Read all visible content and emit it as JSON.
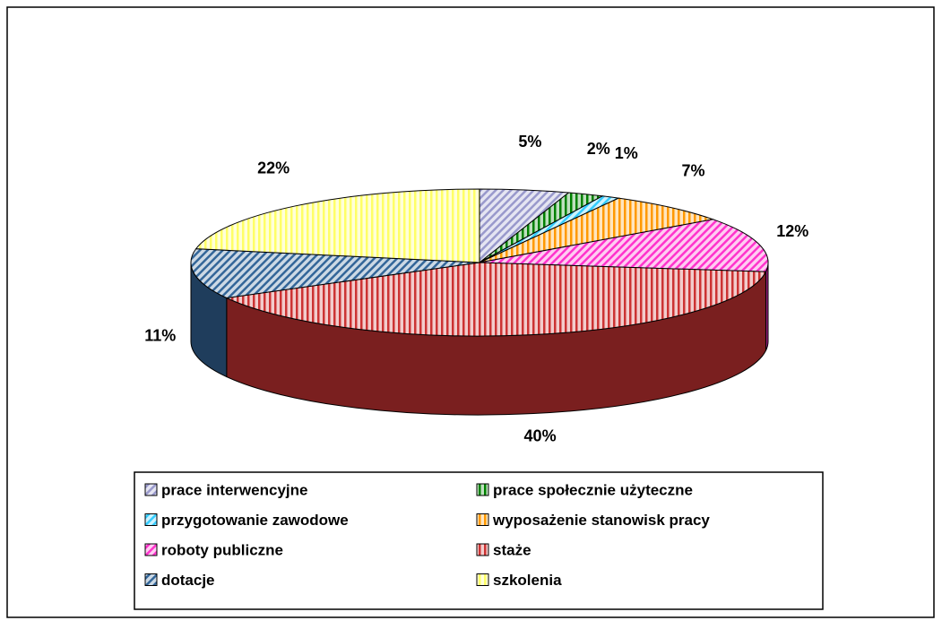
{
  "chart_data": {
    "type": "pie3d",
    "categories": [
      "prace interwencyjne",
      "prace społecznie użyteczne",
      "przygotowanie zawodowe",
      "wyposażenie stanowisk pracy",
      "roboty publiczne",
      "staże",
      "dotacje",
      "szkolenia"
    ],
    "values": [
      5,
      2,
      1,
      7,
      12,
      40,
      11,
      22
    ],
    "value_labels": [
      "5%",
      "2%",
      "1%",
      "7%",
      "12%",
      "40%",
      "11%",
      "22%"
    ],
    "colors": [
      "#9999cc",
      "#008000",
      "#33ccff",
      "#ff9900",
      "#ff33cc",
      "#cc3333",
      "#336699",
      "#ffff66"
    ],
    "legend": "bottom"
  }
}
